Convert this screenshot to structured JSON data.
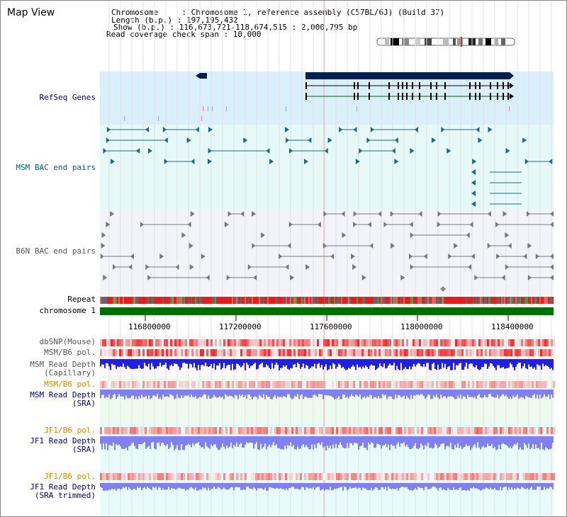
{
  "title": "Map View",
  "header": {
    "chromosome_label": "Chromosome     : Chromosome 1, reference assembly (C57BL/6J) (Build 37)",
    "length_label": "Length (b.p.) : 197,195,432",
    "show_label": "Show (b.p.) : 116,673,721-118,674,515 : 2,000,795 bp",
    "coverage_label": "Read coverage check span : 10,000"
  },
  "tracks": {
    "refseq": "RefSeq Genes",
    "msm_bac": "MSM BAC end pairs",
    "b6n_bac": "B6N BAC end pairs",
    "repeat": "Repeat",
    "chromosome": "chromosome 1",
    "dbsnp": "dbSNP(Mouse)",
    "msm_pol": "MSM/B6 pol.",
    "msm_depth_cap_1": "MSM Read Depth",
    "msm_depth_cap_2": "(Capillary)",
    "msm_pol2": "MSM/B6 pol.",
    "msm_depth_sra_1": "MSM Read Depth",
    "msm_depth_sra_2": "(SRA)",
    "jf1_pol": "JF1/B6 pol.",
    "jf1_depth_1": "JF1 Read Depth",
    "jf1_depth_2": "(SRA)",
    "jf1_pol2": "JF1/B6 pol.",
    "jf1_trim_1": "JF1 Read Depth",
    "jf1_trim_2": "(SRA trimmed)"
  },
  "axis_ticks": [
    "116800000",
    "117200000",
    "117600000",
    "118000000",
    "118400000"
  ],
  "colors": {
    "refseq_bg": "#d9f0fa",
    "msm_bg": "#e6f8f8",
    "b6n_bg": "#f2f4fa",
    "chromosome": "#007000",
    "msm_blue": "#2020e0",
    "light_blue": "#8080f0",
    "gene_navy": "#002050",
    "msm_color": "#1a6a8a"
  }
}
